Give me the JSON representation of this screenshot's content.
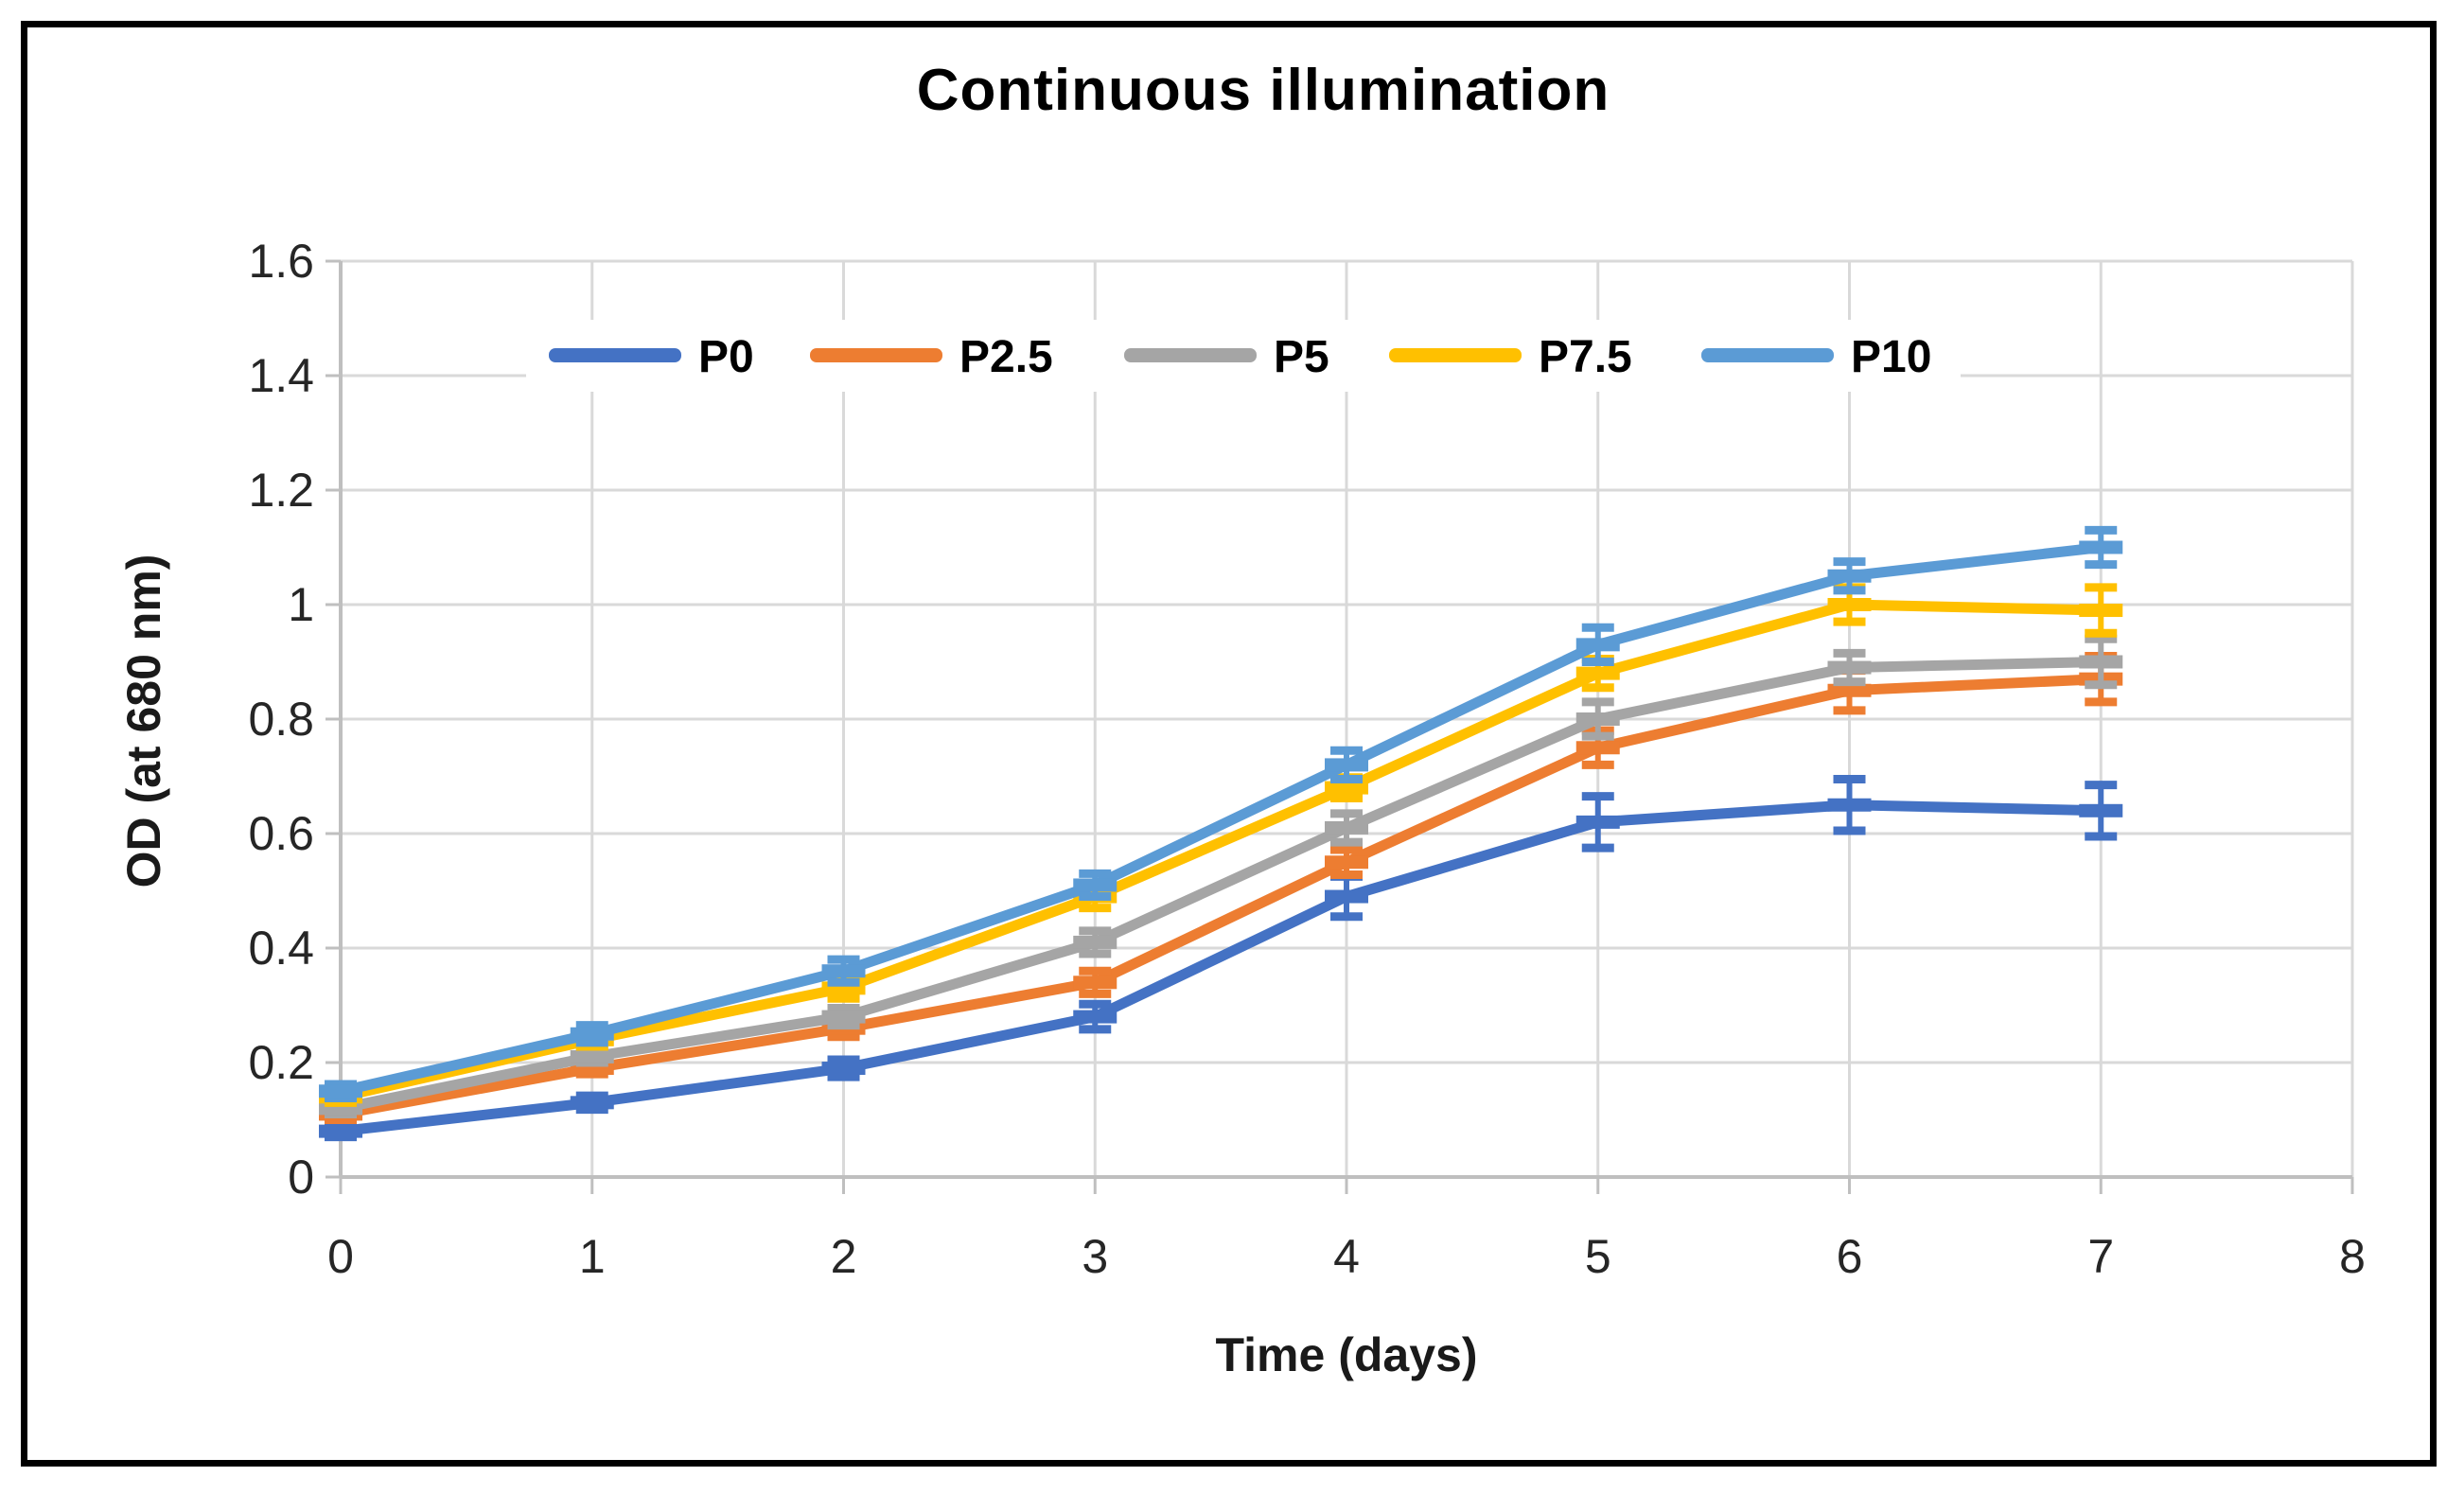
{
  "figure": {
    "background": "#ffffff",
    "border_color": "#000000"
  },
  "chart_data": {
    "type": "line",
    "title": "Continuous illumination",
    "xlabel": "Time (days)",
    "ylabel": "OD (at 680 nm)",
    "x": [
      0,
      1,
      2,
      3,
      4,
      5,
      6,
      7
    ],
    "xlim": [
      0,
      8
    ],
    "ylim": [
      0,
      1.6
    ],
    "xticks": [
      "0",
      "1",
      "2",
      "3",
      "4",
      "5",
      "6",
      "7",
      "8"
    ],
    "yticks": [
      "0",
      "0.2",
      "0.4",
      "0.6",
      "0.8",
      "1",
      "1.2",
      "1.4",
      "1.6"
    ],
    "grid": true,
    "legend_position": "top-inside-horizontal",
    "marker_style": "dash",
    "error_bars": true,
    "series": [
      {
        "name": "P0",
        "color": "#4472C4",
        "values": [
          0.08,
          0.13,
          0.19,
          0.28,
          0.49,
          0.62,
          0.65,
          0.64
        ],
        "errors": [
          0.01,
          0.012,
          0.015,
          0.022,
          0.035,
          0.045,
          0.045,
          0.045
        ]
      },
      {
        "name": "P2.5",
        "color": "#ED7D31",
        "values": [
          0.11,
          0.19,
          0.26,
          0.34,
          0.55,
          0.75,
          0.85,
          0.87
        ],
        "errors": [
          0.01,
          0.01,
          0.015,
          0.02,
          0.022,
          0.03,
          0.035,
          0.04
        ]
      },
      {
        "name": "P5",
        "color": "#A5A5A5",
        "values": [
          0.12,
          0.21,
          0.28,
          0.41,
          0.61,
          0.8,
          0.89,
          0.9
        ],
        "errors": [
          0.01,
          0.01,
          0.015,
          0.02,
          0.025,
          0.03,
          0.025,
          0.04
        ]
      },
      {
        "name": "P7.5",
        "color": "#FFC000",
        "values": [
          0.14,
          0.24,
          0.33,
          0.49,
          0.68,
          0.88,
          1.0,
          0.99
        ],
        "errors": [
          0.01,
          0.012,
          0.018,
          0.02,
          0.018,
          0.025,
          0.03,
          0.04
        ]
      },
      {
        "name": "P10",
        "color": "#5B9BD5",
        "values": [
          0.15,
          0.25,
          0.36,
          0.51,
          0.72,
          0.93,
          1.05,
          1.1
        ],
        "errors": [
          0.012,
          0.015,
          0.02,
          0.02,
          0.025,
          0.03,
          0.025,
          0.03
        ]
      }
    ],
    "colors": {
      "gridline": "#D9D9D9",
      "axis_line": "#BFBFBF",
      "tick_label": "#262626",
      "title": "#000000"
    }
  }
}
